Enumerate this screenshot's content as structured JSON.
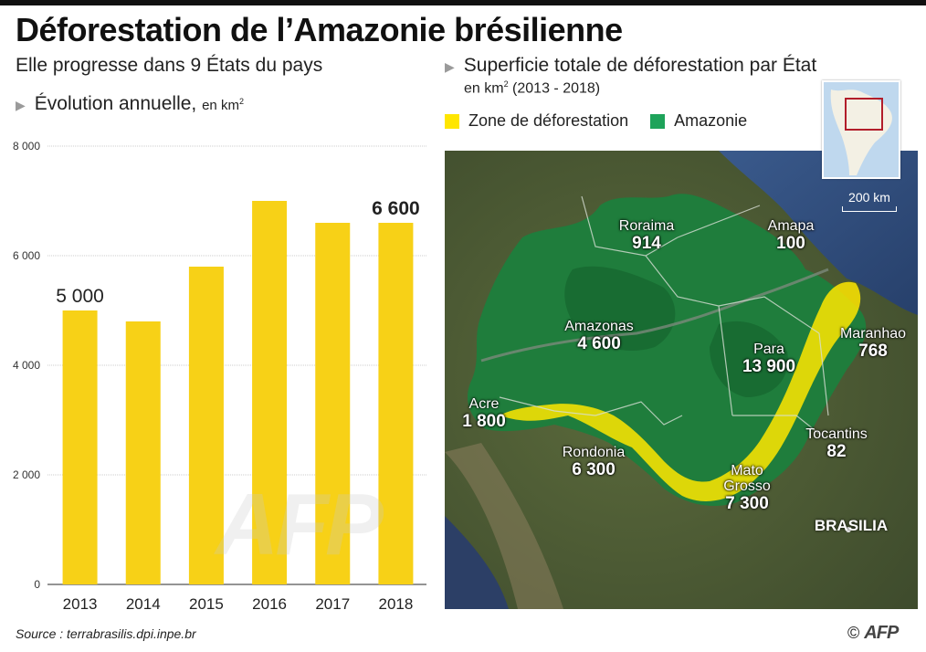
{
  "header": {
    "title": "Déforestation de l’Amazonie brésilienne",
    "subtitle": "Elle progresse dans 9 États du pays"
  },
  "bar_section": {
    "heading": "Évolution annuelle,",
    "unit": "en km"
  },
  "map_section": {
    "heading": "Superficie totale de déforestation par État",
    "unit": "en km",
    "period": "(2013 - 2018)",
    "legend": [
      {
        "label": "Zone de déforestation",
        "color": "#ffe600"
      },
      {
        "label": "Amazonie",
        "color": "#1ea35a"
      }
    ],
    "scale_label": "200 km",
    "states": [
      {
        "name": "Roraima",
        "value": "914"
      },
      {
        "name": "Amapa",
        "value": "100"
      },
      {
        "name": "Amazonas",
        "value": "4 600"
      },
      {
        "name": "Para",
        "value": "13 900"
      },
      {
        "name": "Maranhao",
        "value": "768"
      },
      {
        "name": "Acre",
        "value": "1 800"
      },
      {
        "name": "Tocantins",
        "value": "82"
      },
      {
        "name": "Rondonia",
        "value": "6 300"
      },
      {
        "name": "Mato Grosso",
        "value": "7 300"
      }
    ],
    "capital": "BRASILIA"
  },
  "chart_data": {
    "type": "bar",
    "categories": [
      "2013",
      "2014",
      "2015",
      "2016",
      "2017",
      "2018"
    ],
    "values": [
      5000,
      4800,
      5800,
      7000,
      6600,
      6600
    ],
    "ylim": [
      0,
      8000
    ],
    "yticks": [
      0,
      2000,
      4000,
      6000,
      8000
    ],
    "ytick_labels": [
      "0",
      "2 000",
      "4 000",
      "6 000",
      "8 000"
    ],
    "data_labels": [
      "5 000",
      "",
      "",
      "",
      "",
      "6 600"
    ],
    "bar_color": "#f7d117",
    "grid": true
  },
  "footer": {
    "source": "Source : terrabrasilis.dpi.inpe.br",
    "copyright": "©",
    "agency": "AFP"
  },
  "watermark": "AFP"
}
